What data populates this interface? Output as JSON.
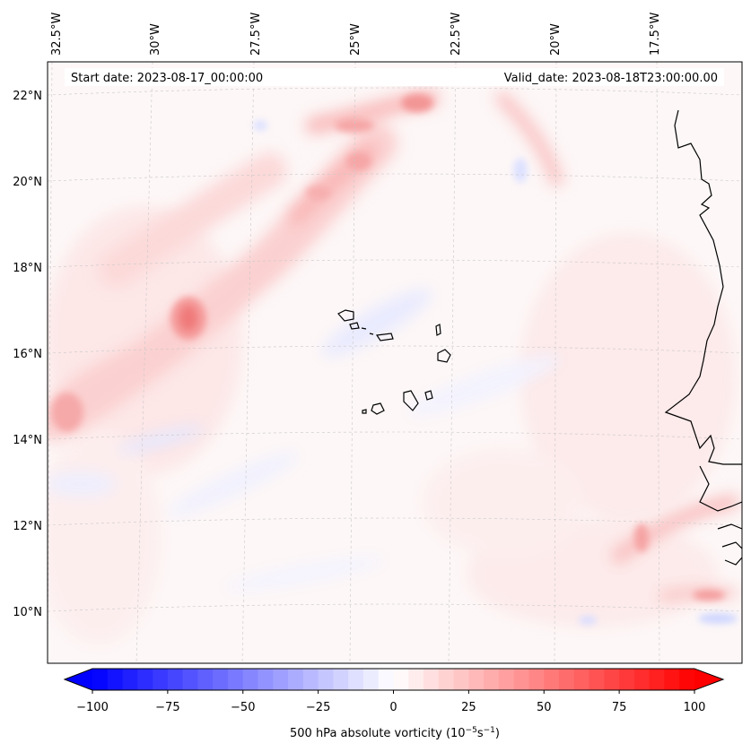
{
  "header": {
    "start_date": "Start date: 2023-08-17_00:00:00",
    "valid_date": "Valid_date: 2023-08-18T23:00:00.00"
  },
  "map": {
    "longitude_labels": [
      "32.5°W",
      "30°W",
      "27.5°W",
      "25°W",
      "22.5°W",
      "20°W",
      "17.5°W"
    ],
    "latitude_labels": [
      "22°N",
      "20°N",
      "18°N",
      "16°N",
      "14°N",
      "12°N",
      "10°N"
    ],
    "gridlines": true,
    "coastlines": true
  },
  "colorbar": {
    "label": "500 hPa absolute vorticity (10",
    "label_exp1": "−5",
    "label_mid": "s",
    "label_exp2": "−1",
    "label_close": ")",
    "ticks": [
      "−100",
      "−75",
      "−50",
      "−25",
      "0",
      "25",
      "50",
      "75",
      "100"
    ],
    "min": -100,
    "max": 100,
    "extend": "both",
    "cmap": "bwr",
    "low_color": "#0000ff",
    "mid_color": "#ffffff",
    "high_color": "#ff0000"
  }
}
